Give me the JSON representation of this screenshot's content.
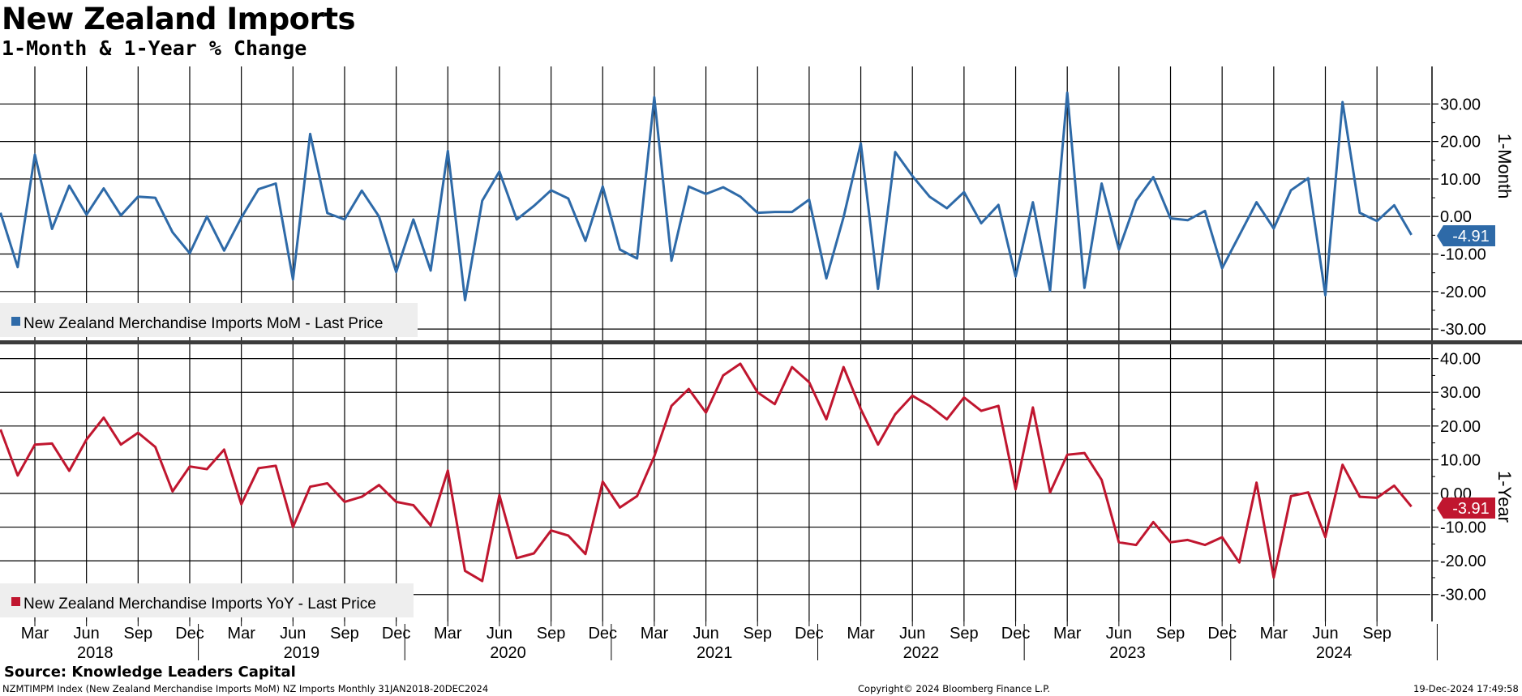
{
  "header": {
    "title": "New Zealand Imports",
    "subtitle": "1-Month & 1-Year % Change"
  },
  "footer": {
    "source": "Source: Knowledge Leaders Capital",
    "index_line": "NZMTIMPM Index (New Zealand Merchandise Imports MoM) NZ Imports  Monthly 31JAN2018-20DEC2024",
    "copyright": "Copyright© 2024 Bloomberg Finance L.P.",
    "timestamp": "19-Dec-2024 17:49:58"
  },
  "colors": {
    "mom": "#2e6aa8",
    "yoy": "#c0162f"
  },
  "chart_data": {
    "type": "line",
    "x_start": "2018-01",
    "x_end": "2024-11",
    "x_axis": {
      "month_ticks": [
        "Mar",
        "Jun",
        "Sep",
        "Dec",
        "Mar",
        "Jun",
        "Sep",
        "Dec",
        "Mar",
        "Jun",
        "Sep",
        "Dec",
        "Mar",
        "Jun",
        "Sep",
        "Dec",
        "Mar",
        "Jun",
        "Sep",
        "Dec",
        "Mar",
        "Jun",
        "Sep",
        "Dec",
        "Mar",
        "Jun",
        "Sep"
      ],
      "year_labels": [
        "2018",
        "2019",
        "2020",
        "2021",
        "2022",
        "2023",
        "2024"
      ]
    },
    "panels": [
      {
        "name": "mom",
        "ylabel": "1-Month",
        "ylim": [
          -33,
          40
        ],
        "yticks": [
          -30,
          -20,
          -10,
          0,
          10,
          20,
          30
        ],
        "ytick_labels": [
          "-30.00",
          "-20.00",
          "-10.00",
          "0.00",
          "10.00",
          "20.00",
          "30.00"
        ],
        "last_value_label": "-4.91",
        "legend": "New Zealand Merchandise Imports MoM - Last Price",
        "values": [
          1,
          -13.5,
          16.5,
          -3.3,
          8.2,
          0.5,
          7.5,
          0.3,
          5.3,
          5.0,
          -4.2,
          -9.8,
          0.0,
          -9.1,
          -0.3,
          7.3,
          8.8,
          -16.8,
          22.0,
          0.9,
          -0.8,
          6.9,
          0.0,
          -14.8,
          -0.8,
          -14.4,
          17.5,
          -22.3,
          4.2,
          12.0,
          -0.8,
          2.8,
          7.0,
          4.8,
          -6.5,
          8.0,
          -8.8,
          -11.2,
          31.8,
          -11.8,
          8.0,
          6.0,
          7.8,
          5.3,
          1.0,
          1.2,
          1.2,
          4.5,
          -16.5,
          -0.2,
          19.5,
          -19.3,
          17.2,
          10.8,
          5.3,
          2.2,
          6.5,
          -1.8,
          3.1,
          -16.0,
          3.8,
          -19.8,
          33.0,
          -19.0,
          8.8,
          -8.8,
          4.2,
          10.5,
          -0.5,
          -1.0,
          1.5,
          -13.8,
          -5.0,
          3.8,
          -3.2,
          7.0,
          10.2,
          -21.0,
          30.5,
          1.0,
          -1.2,
          3.0,
          -4.91
        ]
      },
      {
        "name": "yoy",
        "ylabel": "1-Year",
        "ylim": [
          -38,
          44
        ],
        "yticks": [
          -30,
          -20,
          -10,
          0,
          10,
          20,
          30,
          40
        ],
        "ytick_labels": [
          "-30.00",
          "-20.00",
          "-10.00",
          "0.00",
          "10.00",
          "20.00",
          "30.00",
          "40.00"
        ],
        "last_value_label": "-3.91",
        "legend": "New Zealand Merchandise Imports YoY - Last Price",
        "values": [
          19,
          5.3,
          14.5,
          14.8,
          6.7,
          16.0,
          22.5,
          14.5,
          18.0,
          13.8,
          0.6,
          8.0,
          7.2,
          13.0,
          -3.2,
          7.5,
          8.2,
          -10.0,
          2.0,
          3.0,
          -2.5,
          -1.0,
          2.5,
          -2.5,
          -3.5,
          -9.5,
          6.8,
          -23.0,
          -26.0,
          -0.5,
          -19.2,
          -17.8,
          -11.0,
          -12.5,
          -18.0,
          3.5,
          -4.2,
          -0.8,
          11.0,
          26.0,
          31.0,
          24.0,
          35.0,
          38.5,
          30.0,
          26.5,
          37.5,
          33.0,
          22.0,
          37.5,
          25.0,
          14.5,
          23.5,
          29.0,
          26.0,
          22.0,
          28.5,
          24.5,
          26.0,
          1.2,
          25.5,
          0.3,
          11.5,
          12.0,
          4.0,
          -14.5,
          -15.3,
          -8.5,
          -14.5,
          -13.8,
          -15.3,
          -13.0,
          -20.5,
          3.2,
          -25.0,
          -0.8,
          0.3,
          -13.0,
          8.5,
          -1.0,
          -1.3,
          2.3,
          -3.91
        ]
      }
    ],
    "grid": true
  }
}
